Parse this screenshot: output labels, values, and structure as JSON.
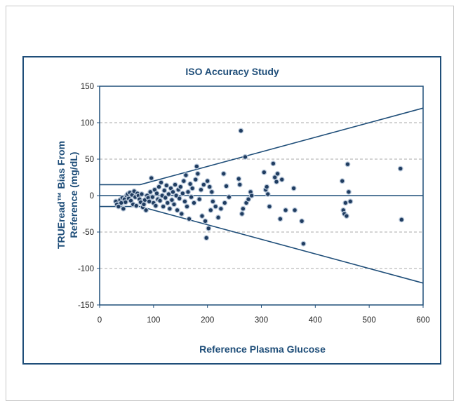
{
  "chart_data": {
    "type": "scatter",
    "title": "ISO Accuracy Study",
    "xlabel": "Reference Plasma Glucose",
    "ylabel_lines": [
      "TRUEread™ Bias From",
      "Reference (mg/dL)"
    ],
    "xlim": [
      0,
      600
    ],
    "ylim": [
      -150,
      150
    ],
    "x_ticks": [
      "0",
      "100",
      "200",
      "300",
      "400",
      "500",
      "600"
    ],
    "y_ticks": [
      "150",
      "100",
      "50",
      "0",
      "-50",
      "-100",
      "-150"
    ],
    "grid": "dashed horizontal",
    "colors": {
      "axis": "#1f4e79",
      "point_fill": "#1f3c60",
      "point_edge": "#b8c7d9",
      "grid": "#aaaaaa"
    },
    "boundary_upper": [
      [
        0,
        15
      ],
      [
        75,
        15
      ],
      [
        600,
        120
      ]
    ],
    "boundary_lower": [
      [
        0,
        -15
      ],
      [
        75,
        -15
      ],
      [
        600,
        -120
      ]
    ],
    "points": [
      [
        30,
        -8
      ],
      [
        32,
        -12
      ],
      [
        35,
        -15
      ],
      [
        38,
        -6
      ],
      [
        40,
        -10
      ],
      [
        42,
        -3
      ],
      [
        44,
        -18
      ],
      [
        46,
        -5
      ],
      [
        48,
        -9
      ],
      [
        50,
        0
      ],
      [
        52,
        2
      ],
      [
        54,
        -4
      ],
      [
        56,
        4
      ],
      [
        58,
        -7
      ],
      [
        60,
        1
      ],
      [
        62,
        -12
      ],
      [
        64,
        6
      ],
      [
        66,
        -2
      ],
      [
        68,
        -14
      ],
      [
        70,
        3
      ],
      [
        72,
        0
      ],
      [
        74,
        -5
      ],
      [
        76,
        -9
      ],
      [
        78,
        2
      ],
      [
        80,
        -16
      ],
      [
        82,
        -12
      ],
      [
        84,
        -6
      ],
      [
        86,
        -20
      ],
      [
        88,
        0
      ],
      [
        90,
        -3
      ],
      [
        92,
        -8
      ],
      [
        94,
        5
      ],
      [
        96,
        24
      ],
      [
        98,
        -2
      ],
      [
        100,
        -10
      ],
      [
        102,
        8
      ],
      [
        104,
        -14
      ],
      [
        106,
        3
      ],
      [
        108,
        -5
      ],
      [
        110,
        12
      ],
      [
        112,
        -7
      ],
      [
        114,
        18
      ],
      [
        116,
        0
      ],
      [
        118,
        -15
      ],
      [
        120,
        7
      ],
      [
        122,
        -3
      ],
      [
        124,
        14
      ],
      [
        126,
        -10
      ],
      [
        128,
        2
      ],
      [
        130,
        -18
      ],
      [
        132,
        10
      ],
      [
        134,
        -6
      ],
      [
        136,
        5
      ],
      [
        138,
        -12
      ],
      [
        140,
        15
      ],
      [
        142,
        0
      ],
      [
        144,
        -20
      ],
      [
        146,
        8
      ],
      [
        148,
        -4
      ],
      [
        150,
        12
      ],
      [
        152,
        -25
      ],
      [
        154,
        3
      ],
      [
        156,
        20
      ],
      [
        158,
        -8
      ],
      [
        160,
        28
      ],
      [
        162,
        -15
      ],
      [
        164,
        5
      ],
      [
        166,
        -32
      ],
      [
        168,
        16
      ],
      [
        170,
        -2
      ],
      [
        172,
        10
      ],
      [
        175,
        -10
      ],
      [
        178,
        22
      ],
      [
        180,
        40
      ],
      [
        182,
        30
      ],
      [
        185,
        -5
      ],
      [
        188,
        8
      ],
      [
        190,
        -28
      ],
      [
        193,
        15
      ],
      [
        196,
        -35
      ],
      [
        198,
        -58
      ],
      [
        200,
        20
      ],
      [
        202,
        -45
      ],
      [
        204,
        12
      ],
      [
        206,
        -20
      ],
      [
        208,
        5
      ],
      [
        210,
        -8
      ],
      [
        215,
        -15
      ],
      [
        220,
        -30
      ],
      [
        225,
        -18
      ],
      [
        230,
        30
      ],
      [
        232,
        -10
      ],
      [
        235,
        13
      ],
      [
        240,
        -2
      ],
      [
        258,
        23
      ],
      [
        260,
        15
      ],
      [
        262,
        89
      ],
      [
        264,
        -25
      ],
      [
        266,
        -18
      ],
      [
        270,
        53
      ],
      [
        272,
        -10
      ],
      [
        276,
        -5
      ],
      [
        280,
        5
      ],
      [
        282,
        0
      ],
      [
        305,
        32
      ],
      [
        308,
        8
      ],
      [
        310,
        12
      ],
      [
        312,
        2
      ],
      [
        315,
        -15
      ],
      [
        322,
        44
      ],
      [
        325,
        25
      ],
      [
        328,
        19
      ],
      [
        330,
        30
      ],
      [
        335,
        -32
      ],
      [
        338,
        22
      ],
      [
        345,
        -20
      ],
      [
        360,
        10
      ],
      [
        362,
        -20
      ],
      [
        375,
        -35
      ],
      [
        378,
        -66
      ],
      [
        450,
        20
      ],
      [
        452,
        -20
      ],
      [
        454,
        -25
      ],
      [
        456,
        -10
      ],
      [
        458,
        -28
      ],
      [
        460,
        43
      ],
      [
        462,
        5
      ],
      [
        465,
        -8
      ],
      [
        558,
        37
      ],
      [
        560,
        -33
      ]
    ]
  }
}
